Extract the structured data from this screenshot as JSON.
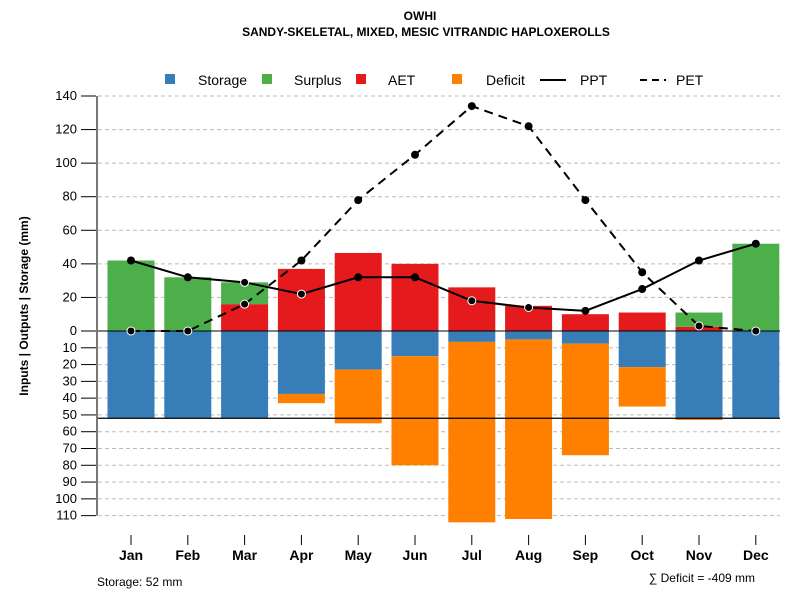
{
  "chart_data": {
    "type": "bar",
    "title": "OWHI",
    "subtitle": "SANDY-SKELETAL, MIXED, MESIC VITRANDIC HAPLOXEROLLS",
    "ylabel": "Inputs | Outputs | Storage    (mm)",
    "xlabel": "",
    "categories": [
      "Jan",
      "Feb",
      "Mar",
      "Apr",
      "May",
      "Jun",
      "Jul",
      "Aug",
      "Sep",
      "Oct",
      "Nov",
      "Dec"
    ],
    "ylim_upper": [
      0,
      140
    ],
    "ylim_lower": [
      0,
      110
    ],
    "upper_ticks": [
      0,
      20,
      40,
      60,
      80,
      100,
      120,
      140
    ],
    "lower_ticks": [
      10,
      20,
      30,
      40,
      50,
      60,
      70,
      80,
      90,
      100,
      110
    ],
    "grid": true,
    "legend_position": "top",
    "legend": [
      {
        "label": "Storage",
        "kind": "box",
        "color": "#377EB8"
      },
      {
        "label": "Surplus",
        "kind": "box",
        "color": "#4DAF4A"
      },
      {
        "label": "AET",
        "kind": "box",
        "color": "#E41A1C"
      },
      {
        "label": "Deficit",
        "kind": "box",
        "color": "#FF7F00"
      },
      {
        "label": "PPT",
        "kind": "solid"
      },
      {
        "label": "PET",
        "kind": "dashed"
      }
    ],
    "series": [
      {
        "name": "AET",
        "color": "#E41A1C",
        "values": [
          0,
          0,
          16,
          37,
          46.5,
          40,
          26,
          15,
          10,
          11,
          2.5,
          0
        ]
      },
      {
        "name": "Surplus",
        "color": "#4DAF4A",
        "values": [
          42,
          32,
          13,
          0,
          0,
          0,
          0,
          0,
          0,
          0,
          8.5,
          52
        ]
      },
      {
        "name": "Storage",
        "color": "#377EB8",
        "values": [
          52,
          52,
          52,
          37.5,
          23,
          15,
          6.5,
          5,
          7.5,
          21.5,
          52,
          52
        ]
      },
      {
        "name": "Deficit",
        "color": "#FF7F00",
        "values": [
          0,
          0,
          0,
          5.5,
          32,
          65,
          107.5,
          107,
          66.5,
          23.5,
          1,
          0
        ]
      },
      {
        "name": "PPT",
        "style": "solid",
        "values": [
          42,
          32,
          29,
          22,
          32,
          32,
          18,
          14,
          12,
          25,
          42,
          52
        ]
      },
      {
        "name": "PET",
        "style": "dashed",
        "values": [
          0,
          0,
          16,
          42,
          78,
          105,
          134,
          122,
          78,
          35,
          3,
          0
        ]
      }
    ],
    "storage_capacity": 52,
    "annotations": {
      "storage": "Storage: 52 mm",
      "deficit_sum": "∑ Deficit = -409 mm"
    }
  }
}
